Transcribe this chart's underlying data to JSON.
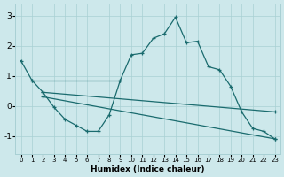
{
  "xlabel": "Humidex (Indice chaleur)",
  "bg_color": "#cde8eb",
  "grid_color": "#a8d0d4",
  "line_color": "#1a6b6e",
  "xlim": [
    -0.5,
    23.5
  ],
  "ylim": [
    -1.6,
    3.4
  ],
  "yticks": [
    -1,
    0,
    1,
    2,
    3
  ],
  "xticks": [
    0,
    1,
    2,
    3,
    4,
    5,
    6,
    7,
    8,
    9,
    10,
    11,
    12,
    13,
    14,
    15,
    16,
    17,
    18,
    19,
    20,
    21,
    22,
    23
  ],
  "series": [
    {
      "x": [
        0,
        1,
        2,
        3,
        4,
        5,
        6,
        7,
        8,
        9,
        10,
        11,
        12,
        13,
        14,
        15,
        16,
        17,
        18,
        19,
        20,
        21,
        22,
        23
      ],
      "y": [
        1.5,
        0.85,
        0.45,
        -0.05,
        -0.45,
        -0.65,
        -0.85,
        -0.85,
        -0.3,
        0.85,
        1.7,
        1.75,
        2.25,
        2.4,
        2.95,
        2.1,
        2.15,
        1.3,
        1.2,
        0.65,
        -0.2,
        -0.75,
        -0.85,
        -1.1
      ]
    },
    {
      "x": [
        1,
        9
      ],
      "y": [
        0.85,
        0.85
      ]
    },
    {
      "x": [
        2,
        23
      ],
      "y": [
        0.45,
        -0.2
      ]
    },
    {
      "x": [
        2,
        23
      ],
      "y": [
        0.3,
        -1.1
      ]
    }
  ]
}
